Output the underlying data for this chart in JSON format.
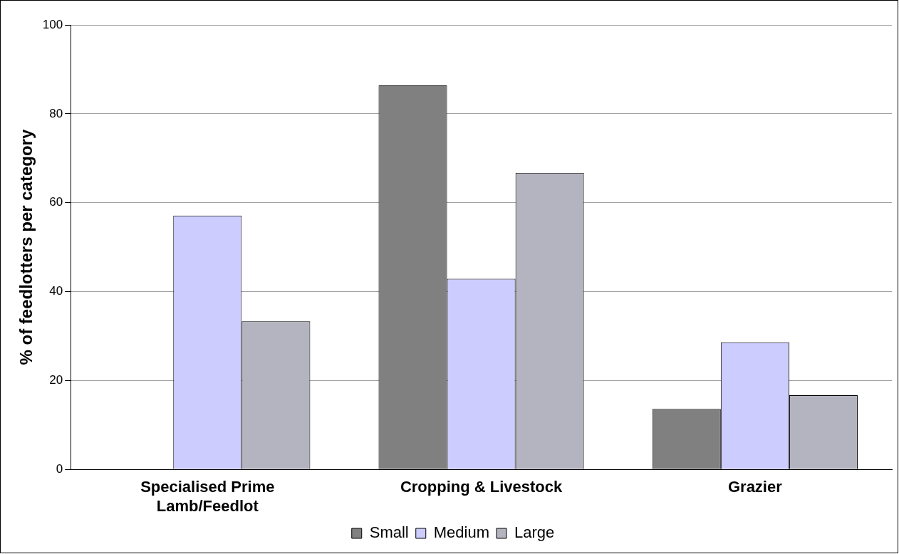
{
  "chart_data": {
    "type": "bar",
    "ylabel": "% of feedlotters per category",
    "categories": [
      "Specialised Prime Lamb/Feedlot",
      "Cropping & Livestock",
      "Grazier"
    ],
    "series": [
      {
        "name": "Small",
        "color": "#808080",
        "values": [
          0,
          86.4,
          13.6
        ]
      },
      {
        "name": "Medium",
        "color": "#ccccff",
        "values": [
          57.1,
          42.9,
          28.6
        ]
      },
      {
        "name": "Large",
        "color": "#b4b4c0",
        "values": [
          33.3,
          66.7,
          16.7
        ]
      }
    ],
    "ylim": [
      0,
      100
    ],
    "yticks": [
      0,
      20,
      40,
      60,
      80,
      100
    ],
    "grid": "y",
    "legend": "bottom"
  }
}
